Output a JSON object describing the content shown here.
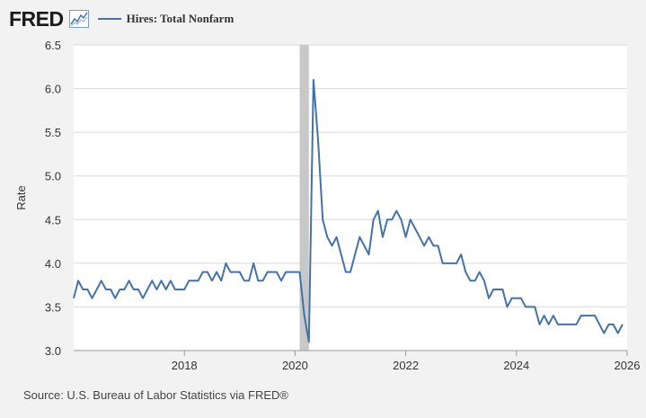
{
  "header": {
    "logo_text": "FRED",
    "logo_icon": "chart-line-icon",
    "legend_label": "Hires: Total Nonfarm",
    "series_color": "#4572a7"
  },
  "source": "Source: U.S. Bureau of Labor Statistics via FRED®",
  "chart_data": {
    "type": "line",
    "ylabel": "Rate",
    "xlabel": "",
    "ylim": [
      3.0,
      6.5
    ],
    "y_ticks": [
      "3.0",
      "3.5",
      "4.0",
      "4.5",
      "5.0",
      "5.5",
      "6.0",
      "6.5"
    ],
    "x_ticks": [
      "2018",
      "2020",
      "2022",
      "2024",
      "2026"
    ],
    "xlim": [
      "2016-01",
      "2026-01"
    ],
    "grid": "horizontal",
    "recession": {
      "start": "2020-02",
      "end": "2020-04"
    },
    "series": [
      {
        "name": "Hires: Total Nonfarm",
        "color": "#4572a7",
        "x": [
          "2016-01",
          "2016-02",
          "2016-03",
          "2016-04",
          "2016-05",
          "2016-06",
          "2016-07",
          "2016-08",
          "2016-09",
          "2016-10",
          "2016-11",
          "2016-12",
          "2017-01",
          "2017-02",
          "2017-03",
          "2017-04",
          "2017-05",
          "2017-06",
          "2017-07",
          "2017-08",
          "2017-09",
          "2017-10",
          "2017-11",
          "2017-12",
          "2018-01",
          "2018-02",
          "2018-03",
          "2018-04",
          "2018-05",
          "2018-06",
          "2018-07",
          "2018-08",
          "2018-09",
          "2018-10",
          "2018-11",
          "2018-12",
          "2019-01",
          "2019-02",
          "2019-03",
          "2019-04",
          "2019-05",
          "2019-06",
          "2019-07",
          "2019-08",
          "2019-09",
          "2019-10",
          "2019-11",
          "2019-12",
          "2020-01",
          "2020-02",
          "2020-03",
          "2020-04",
          "2020-05",
          "2020-06",
          "2020-07",
          "2020-08",
          "2020-09",
          "2020-10",
          "2020-11",
          "2020-12",
          "2021-01",
          "2021-02",
          "2021-03",
          "2021-04",
          "2021-05",
          "2021-06",
          "2021-07",
          "2021-08",
          "2021-09",
          "2021-10",
          "2021-11",
          "2021-12",
          "2022-01",
          "2022-02",
          "2022-03",
          "2022-04",
          "2022-05",
          "2022-06",
          "2022-07",
          "2022-08",
          "2022-09",
          "2022-10",
          "2022-11",
          "2022-12",
          "2023-01",
          "2023-02",
          "2023-03",
          "2023-04",
          "2023-05",
          "2023-06",
          "2023-07",
          "2023-08",
          "2023-09",
          "2023-10",
          "2023-11",
          "2023-12",
          "2024-01",
          "2024-02",
          "2024-03",
          "2024-04",
          "2024-05",
          "2024-06",
          "2024-07",
          "2024-08",
          "2024-09",
          "2024-10",
          "2024-11",
          "2024-12",
          "2025-01",
          "2025-02",
          "2025-03",
          "2025-04",
          "2025-05",
          "2025-06",
          "2025-07",
          "2025-08",
          "2025-09",
          "2025-10",
          "2025-11",
          "2025-12"
        ],
        "values": [
          3.6,
          3.8,
          3.7,
          3.7,
          3.6,
          3.7,
          3.8,
          3.7,
          3.7,
          3.6,
          3.7,
          3.7,
          3.8,
          3.7,
          3.7,
          3.6,
          3.7,
          3.8,
          3.7,
          3.8,
          3.7,
          3.8,
          3.7,
          3.7,
          3.7,
          3.8,
          3.8,
          3.8,
          3.9,
          3.9,
          3.8,
          3.9,
          3.8,
          4.0,
          3.9,
          3.9,
          3.9,
          3.8,
          3.8,
          4.0,
          3.8,
          3.8,
          3.9,
          3.9,
          3.9,
          3.8,
          3.9,
          3.9,
          3.9,
          3.9,
          3.4,
          3.1,
          6.1,
          5.4,
          4.5,
          4.3,
          4.2,
          4.3,
          4.1,
          3.9,
          3.9,
          4.1,
          4.3,
          4.2,
          4.1,
          4.5,
          4.6,
          4.3,
          4.5,
          4.5,
          4.6,
          4.5,
          4.3,
          4.5,
          4.4,
          4.3,
          4.2,
          4.3,
          4.2,
          4.2,
          4.0,
          4.0,
          4.0,
          4.0,
          4.1,
          3.9,
          3.8,
          3.8,
          3.9,
          3.8,
          3.6,
          3.7,
          3.7,
          3.7,
          3.5,
          3.6,
          3.6,
          3.6,
          3.5,
          3.5,
          3.5,
          3.3,
          3.4,
          3.3,
          3.4,
          3.3,
          3.3,
          3.3,
          3.3,
          3.3,
          3.4,
          3.4,
          3.4,
          3.4,
          3.3,
          3.2,
          3.3,
          3.3,
          3.2,
          3.3
        ]
      }
    ]
  }
}
